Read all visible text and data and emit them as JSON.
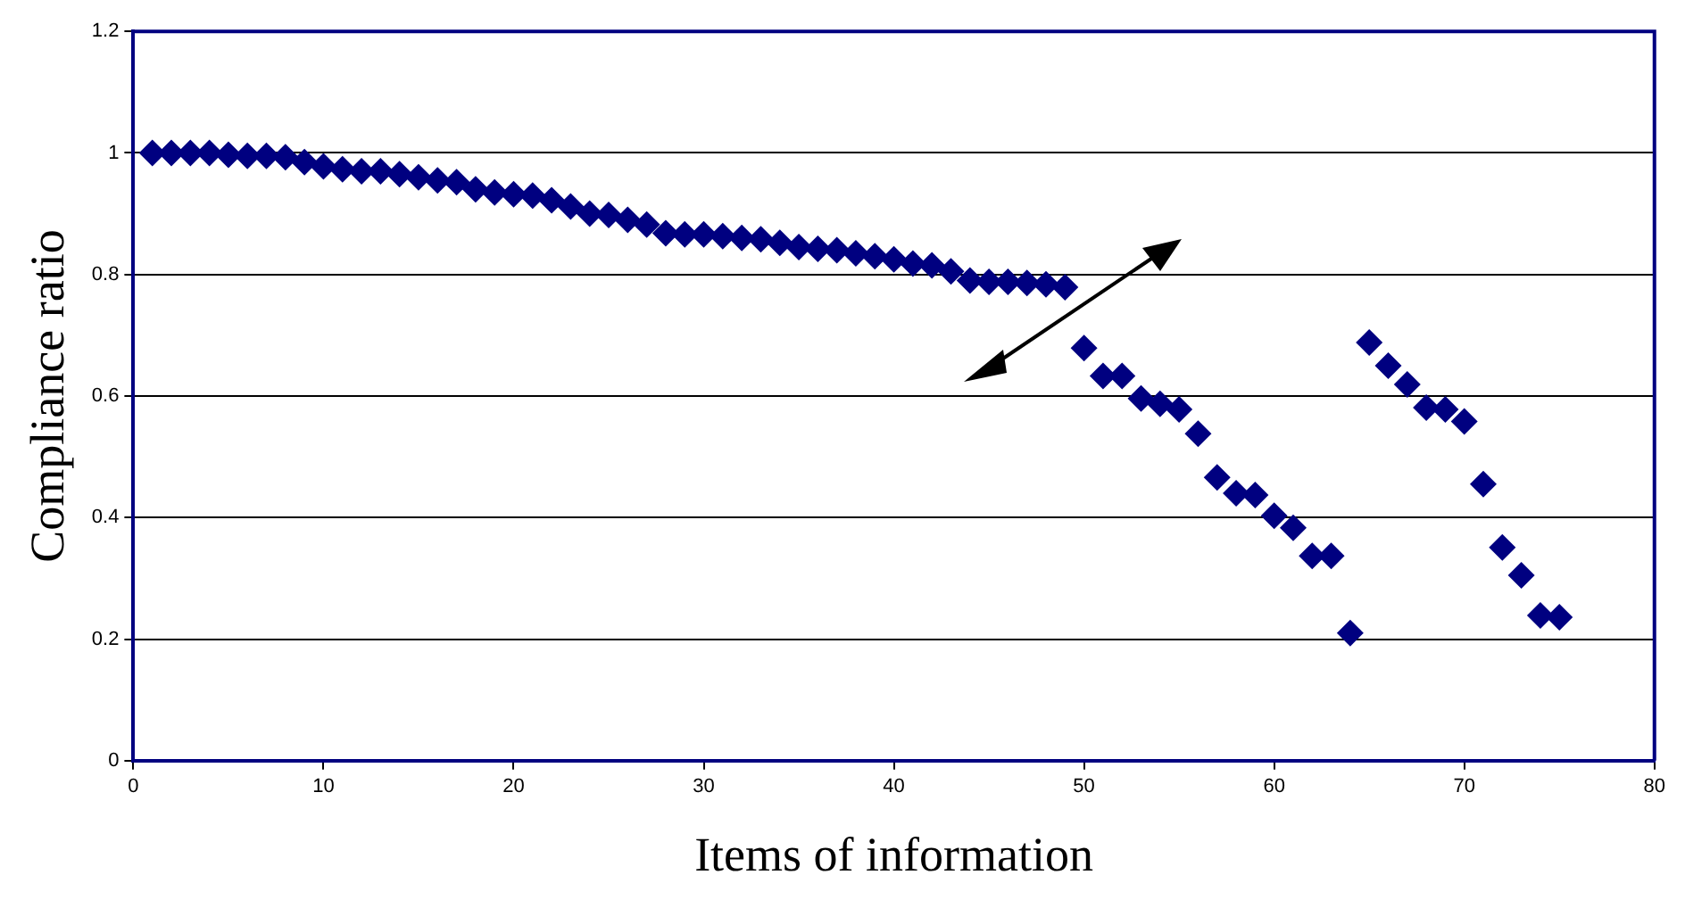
{
  "chart_data": {
    "type": "scatter",
    "xlabel": "Items of information",
    "ylabel": "Compliance ratio",
    "x": [
      1,
      2,
      3,
      4,
      5,
      6,
      7,
      8,
      9,
      10,
      11,
      12,
      13,
      14,
      15,
      16,
      17,
      18,
      19,
      20,
      21,
      22,
      23,
      24,
      25,
      26,
      27,
      28,
      29,
      30,
      31,
      32,
      33,
      34,
      35,
      36,
      37,
      38,
      39,
      40,
      41,
      42,
      43,
      44,
      45,
      46,
      47,
      48,
      49,
      50,
      51,
      52,
      53,
      54,
      55,
      56,
      57,
      58,
      59,
      60,
      61,
      62,
      63,
      64,
      65,
      66,
      67,
      68,
      69,
      70,
      71,
      72,
      73,
      74,
      75
    ],
    "series": [
      {
        "color": "#000080",
        "values": [
          1.0,
          1.0,
          1.0,
          1.0,
          0.997,
          0.995,
          0.995,
          0.993,
          0.985,
          0.978,
          0.973,
          0.97,
          0.97,
          0.965,
          0.96,
          0.955,
          0.952,
          0.94,
          0.935,
          0.932,
          0.93,
          0.922,
          0.912,
          0.9,
          0.898,
          0.89,
          0.882,
          0.868,
          0.866,
          0.866,
          0.863,
          0.86,
          0.858,
          0.852,
          0.845,
          0.842,
          0.84,
          0.835,
          0.83,
          0.825,
          0.818,
          0.815,
          0.805,
          0.79,
          0.788,
          0.788,
          0.786,
          0.784,
          0.779,
          0.679,
          0.633,
          0.633,
          0.596,
          0.587,
          0.578,
          0.538,
          0.466,
          0.44,
          0.437,
          0.403,
          0.383,
          0.337,
          0.337,
          0.21,
          0.688,
          0.65,
          0.619,
          0.581,
          0.578,
          0.558,
          0.455,
          0.351,
          0.305,
          0.239,
          0.236
        ]
      }
    ],
    "xlim": [
      0,
      80
    ],
    "xticks": [
      0,
      10,
      20,
      30,
      40,
      50,
      60,
      70,
      80
    ],
    "ylim": [
      0,
      1.2
    ],
    "yticks": [
      0,
      0.2,
      0.4,
      0.6,
      0.8,
      1,
      1.2
    ],
    "grid": "y",
    "legend": false,
    "marker": "diamond"
  }
}
